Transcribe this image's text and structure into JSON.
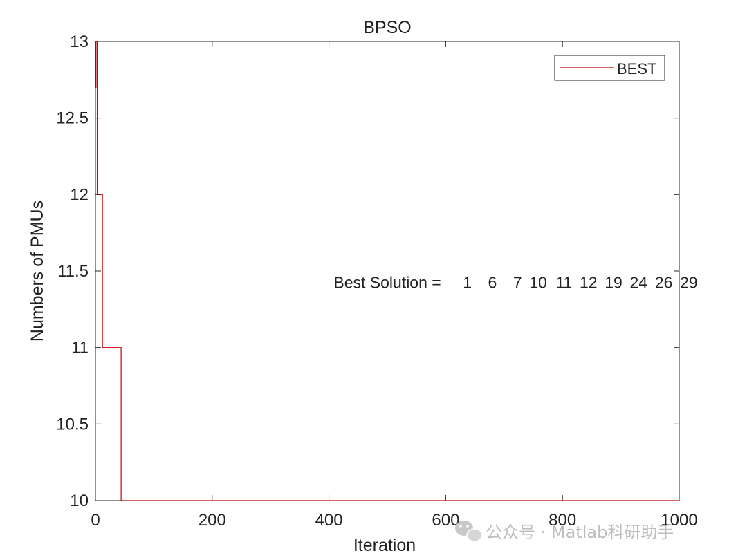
{
  "chart_data": {
    "type": "line",
    "title": "BPSO",
    "xlabel": "Iteration",
    "ylabel": "Numbers of PMUs",
    "xlim": [
      0,
      1000
    ],
    "ylim": [
      10,
      13
    ],
    "xticks": [
      0,
      200,
      400,
      600,
      800,
      1000
    ],
    "yticks": [
      10,
      10.5,
      11,
      11.5,
      12,
      12.5,
      13
    ],
    "ytick_labels": [
      "10",
      "10.5",
      "11",
      "11.5",
      "12",
      "12.5",
      "13"
    ],
    "grid": false,
    "legend_position": "top-right",
    "series": [
      {
        "name": "BEST",
        "color": "#cc0000",
        "step": true,
        "x": [
          0,
          1,
          3,
          12,
          44,
          1000
        ],
        "y": [
          12.7,
          13,
          12,
          11,
          10,
          10
        ]
      }
    ],
    "annotation": {
      "label": "Best Solution =",
      "values": [
        "1",
        "6",
        "7",
        "10",
        "11",
        "12",
        "19",
        "24",
        "26",
        "29"
      ],
      "anchor": [
        410,
        11.425
      ]
    }
  },
  "watermark": {
    "icon": "wechat-icon",
    "text": "公众号 · Matlab科研助手"
  }
}
